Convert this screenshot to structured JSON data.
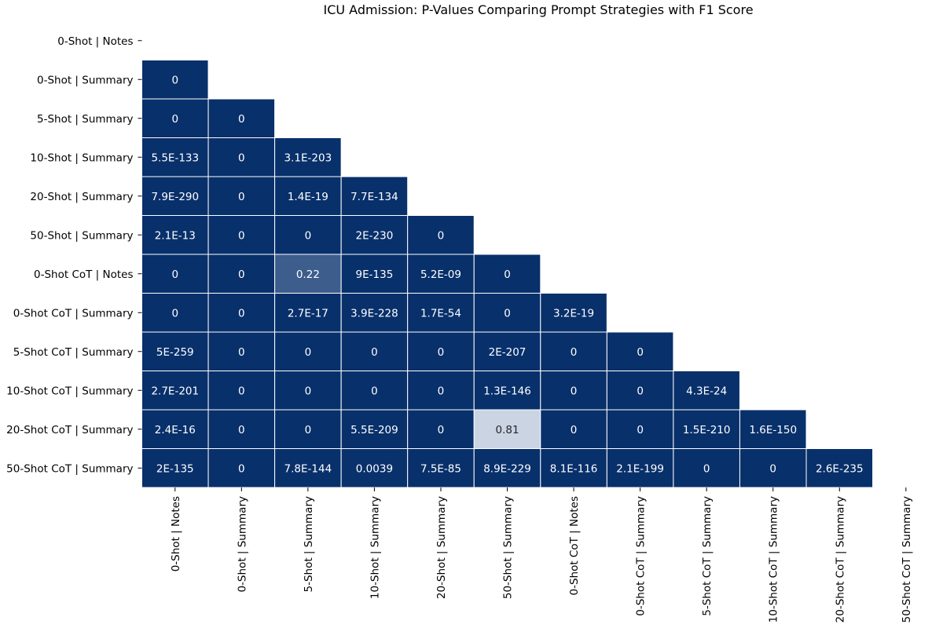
{
  "chart_data": {
    "type": "heatmap",
    "title": "ICU Admission: P-Values Comparing Prompt Strategies with F1 Score",
    "xlabel": "",
    "ylabel": "",
    "row_labels": [
      "0-Shot | Notes",
      "0-Shot | Summary",
      "5-Shot | Summary",
      "10-Shot | Summary",
      "20-Shot | Summary",
      "50-Shot | Summary",
      "0-Shot CoT | Notes",
      "0-Shot CoT | Summary",
      "5-Shot CoT | Summary",
      "10-Shot CoT | Summary",
      "20-Shot CoT | Summary",
      "50-Shot CoT | Summary"
    ],
    "col_labels": [
      "0-Shot | Notes",
      "0-Shot | Summary",
      "5-Shot | Summary",
      "10-Shot | Summary",
      "20-Shot | Summary",
      "50-Shot | Summary",
      "0-Shot CoT | Notes",
      "0-Shot CoT | Summary",
      "5-Shot CoT | Summary",
      "10-Shot CoT | Summary",
      "20-Shot CoT | Summary",
      "50-Shot CoT | Summary"
    ],
    "mask": "lower-triangle (diagonal and upper triangle hidden)",
    "colormap": "Blues reversed (low p-value = dark navy, high p-value = white)",
    "color_low": "#08306b",
    "color_high": "#f7fbff",
    "color_range": [
      0,
      1
    ],
    "cell_border_color": "#ffffff",
    "colorbar": false,
    "grid": false,
    "values": [
      [],
      [
        "0"
      ],
      [
        "0",
        "0"
      ],
      [
        "5.5E-133",
        "0",
        "3.1E-203"
      ],
      [
        "7.9E-290",
        "0",
        "1.4E-19",
        "7.7E-134"
      ],
      [
        "2.1E-13",
        "0",
        "0",
        "2E-230",
        "0"
      ],
      [
        "0",
        "0",
        "0.22",
        "9E-135",
        "5.2E-09",
        "0"
      ],
      [
        "0",
        "0",
        "2.7E-17",
        "3.9E-228",
        "1.7E-54",
        "0",
        "3.2E-19"
      ],
      [
        "5E-259",
        "0",
        "0",
        "0",
        "0",
        "2E-207",
        "0",
        "0"
      ],
      [
        "2.7E-201",
        "0",
        "0",
        "0",
        "0",
        "1.3E-146",
        "0",
        "0",
        "4.3E-24"
      ],
      [
        "2.4E-16",
        "0",
        "0",
        "5.5E-209",
        "0",
        "0.81",
        "0",
        "0",
        "1.5E-210",
        "1.6E-150"
      ],
      [
        "2E-135",
        "0",
        "7.8E-144",
        "0.0039",
        "7.5E-85",
        "8.9E-229",
        "8.1E-116",
        "2.1E-199",
        "0",
        "0",
        "2.6E-235"
      ]
    ]
  }
}
